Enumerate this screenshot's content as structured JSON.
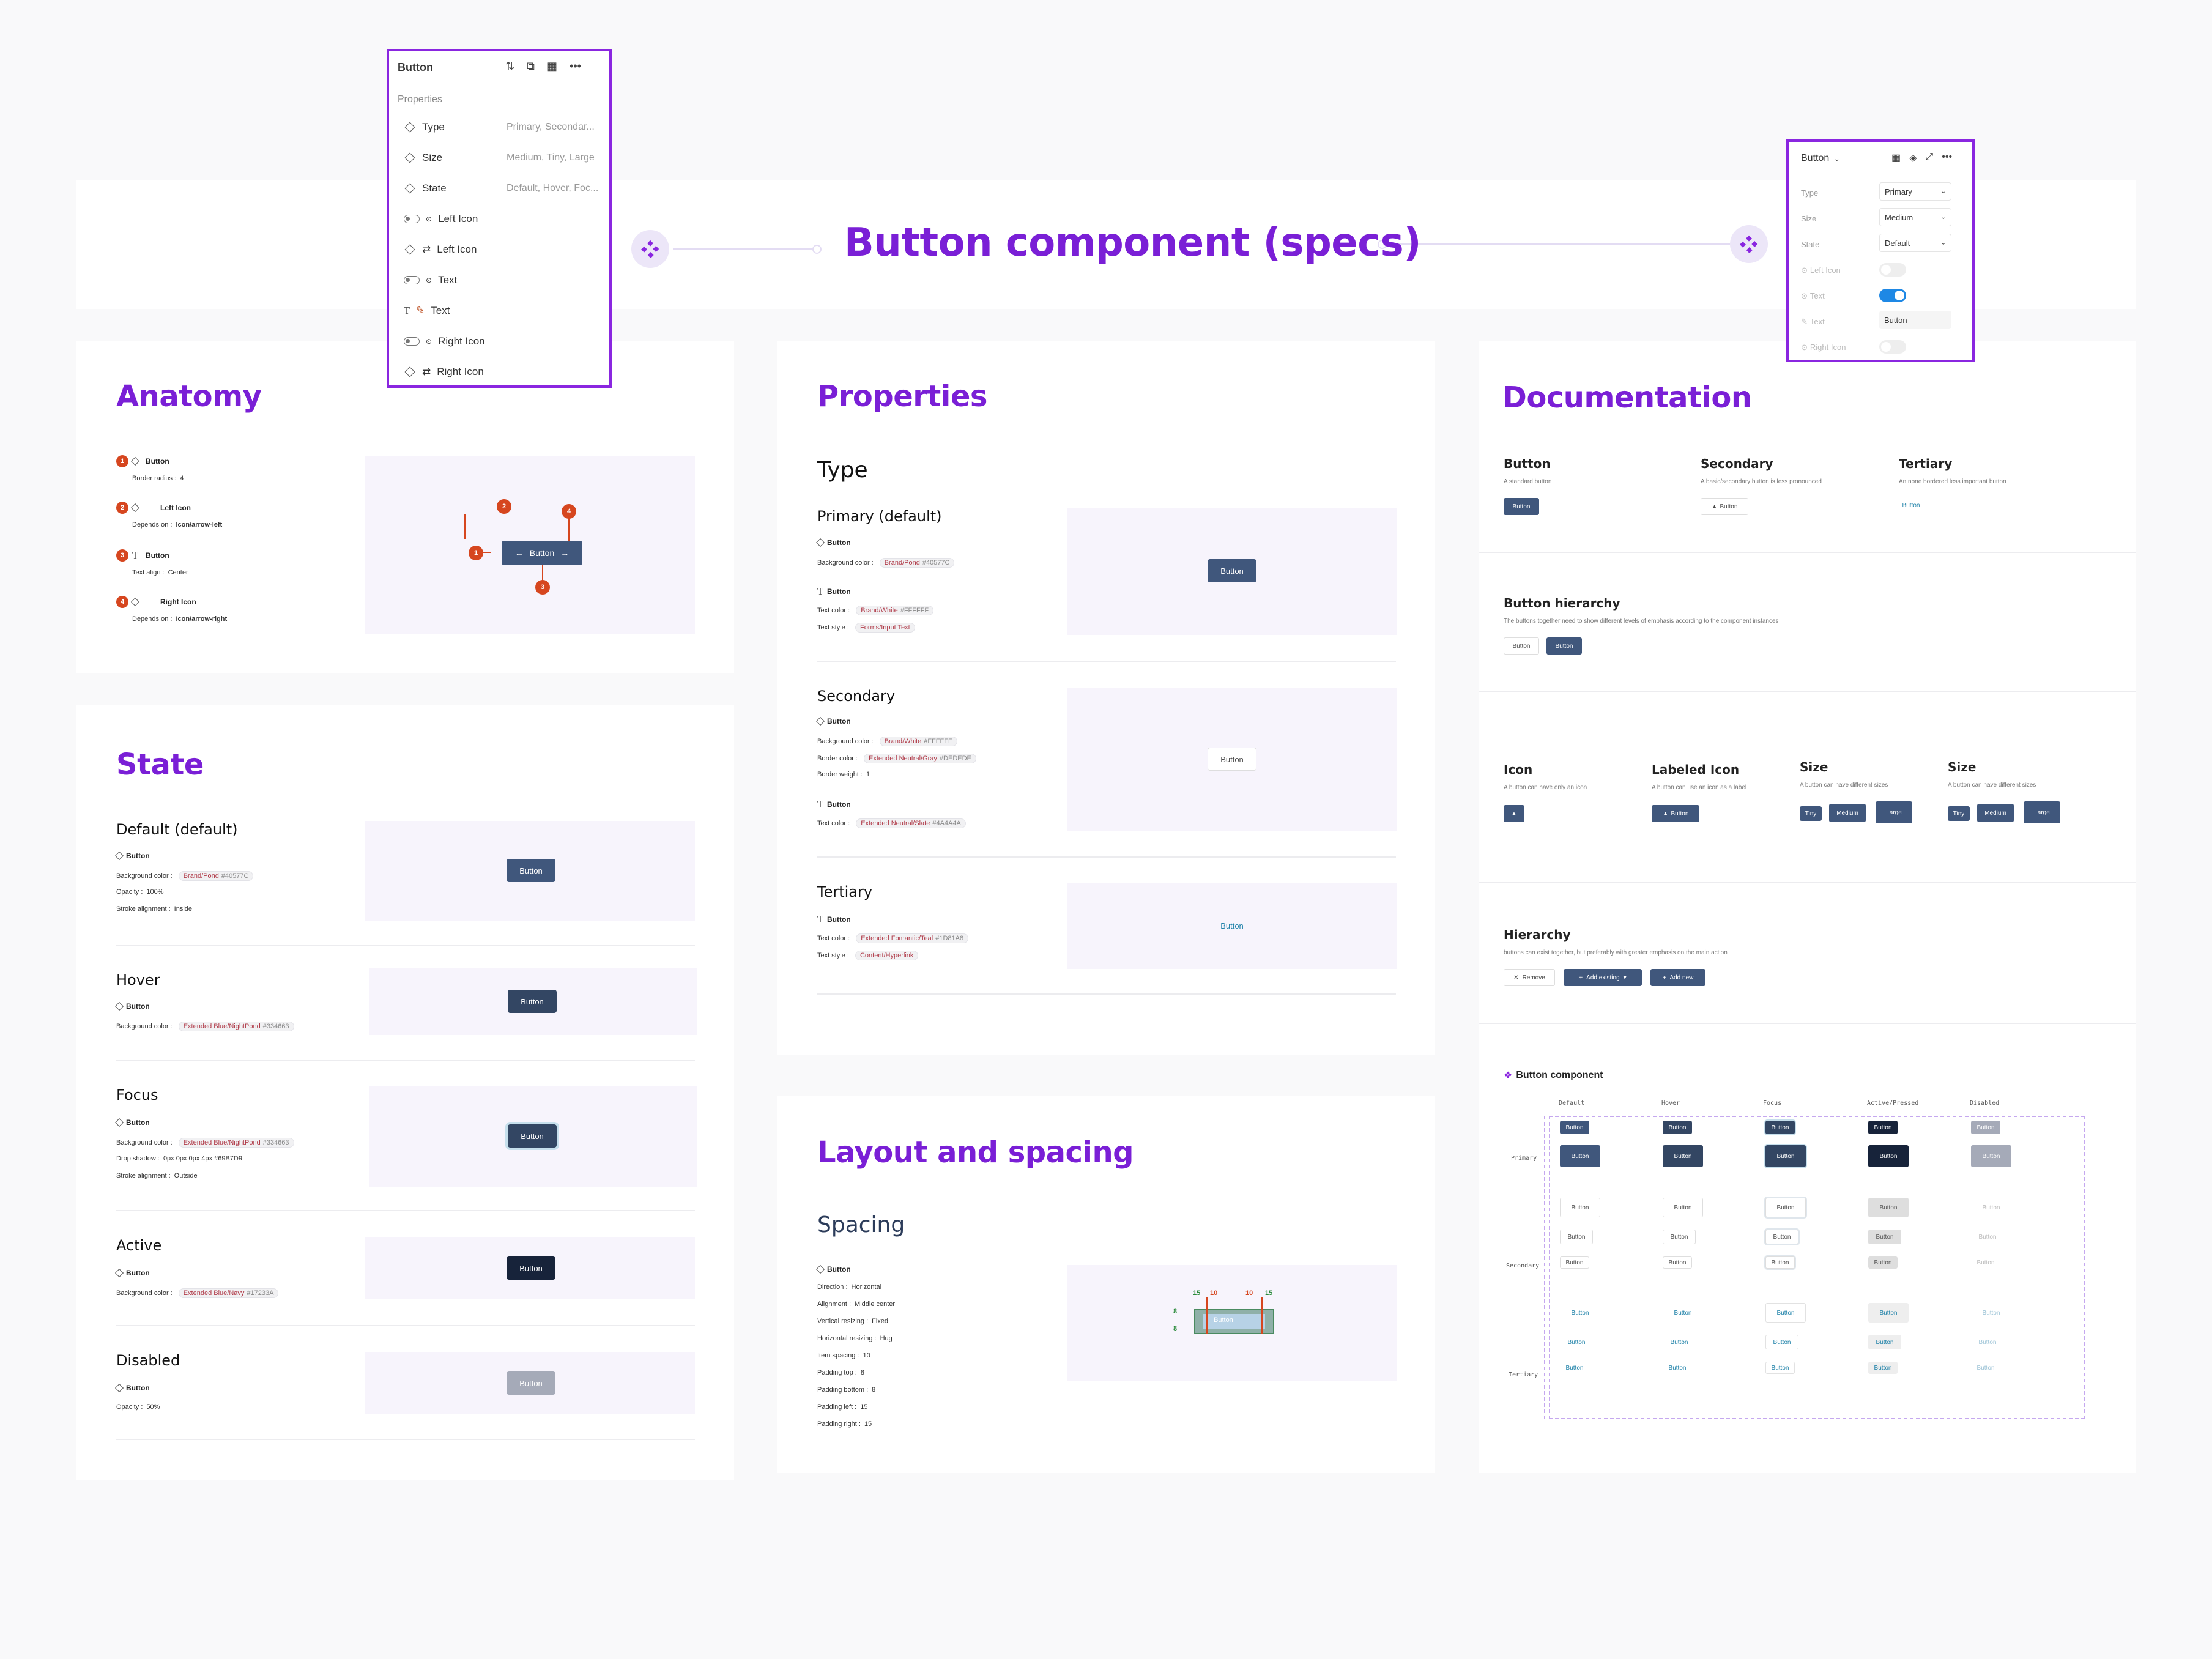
{
  "header": {
    "title": "Button component (specs)"
  },
  "left_panel": {
    "title": "Button",
    "section": "Properties",
    "rows": [
      {
        "label": "Type",
        "value": "Primary, Secondar..."
      },
      {
        "label": "Size",
        "value": "Medium, Tiny, Large"
      },
      {
        "label": "State",
        "value": "Default, Hover, Foc..."
      },
      {
        "label": "Left Icon",
        "value": ""
      },
      {
        "label": "Left Icon",
        "value": ""
      },
      {
        "label": "Text",
        "value": ""
      },
      {
        "label": "Text",
        "value": ""
      },
      {
        "label": "Right Icon",
        "value": ""
      },
      {
        "label": "Right Icon",
        "value": ""
      }
    ]
  },
  "right_panel": {
    "title": "Button",
    "rows": [
      {
        "label": "Type",
        "value": "Primary"
      },
      {
        "label": "Size",
        "value": "Medium"
      },
      {
        "label": "State",
        "value": "Default"
      },
      {
        "label": "Left Icon",
        "value": ""
      },
      {
        "label": "Text",
        "value": ""
      },
      {
        "label": "Text",
        "value": "Button"
      },
      {
        "label": "Right Icon",
        "value": ""
      }
    ]
  },
  "anatomy": {
    "title": "Anatomy",
    "items": [
      {
        "n": "1",
        "name": "Button",
        "key": "Border radius :",
        "val": "4"
      },
      {
        "n": "2",
        "name": "Left Icon",
        "key": "Depends on :",
        "val": "Icon/arrow-left"
      },
      {
        "n": "3",
        "name": "Button",
        "key": "Text align :",
        "val": "Center"
      },
      {
        "n": "4",
        "name": "Right Icon",
        "key": "Depends on :",
        "val": "Icon/arrow-right"
      }
    ],
    "button_label": "Button",
    "markers": [
      "1",
      "2",
      "3",
      "4"
    ]
  },
  "state": {
    "title": "State",
    "default": {
      "title": "Default (default)",
      "name": "Button",
      "bg_key": "Background color :",
      "bg_chip": "Brand/Pond",
      "bg_hex": "#40577C",
      "opacity": "Opacity :",
      "opacity_val": "100%",
      "stroke": "Stroke alignment :",
      "stroke_val": "Inside",
      "btn": "Button"
    },
    "hover": {
      "title": "Hover",
      "name": "Button",
      "bg_key": "Background color :",
      "bg_chip": "Extended Blue/NightPond",
      "bg_hex": "#334663",
      "btn": "Button"
    },
    "focus": {
      "title": "Focus",
      "name": "Button",
      "bg_key": "Background color :",
      "bg_chip": "Extended Blue/NightPond",
      "bg_hex": "#334663",
      "shadow": "Drop shadow :",
      "shadow_val": "0px 0px 0px 4px #69B7D9",
      "stroke": "Stroke alignment :",
      "stroke_val": "Outside",
      "btn": "Button"
    },
    "active": {
      "title": "Active",
      "name": "Button",
      "bg_key": "Background color :",
      "bg_chip": "Extended Blue/Navy",
      "bg_hex": "#17233A",
      "btn": "Button"
    },
    "disabled": {
      "title": "Disabled",
      "name": "Button",
      "opacity": "Opacity :",
      "opacity_val": "50%",
      "btn": "Button"
    }
  },
  "properties": {
    "title": "Properties",
    "type": "Type",
    "primary": {
      "title": "Primary (default)",
      "n1": "Button",
      "bg_key": "Background color :",
      "bg_chip": "Brand/Pond",
      "bg_hex": "#40577C",
      "n2": "Button",
      "tc_key": "Text color :",
      "tc_chip": "Brand/White",
      "tc_hex": "#FFFFFF",
      "ts_key": "Text style :",
      "ts_chip": "Forms/Input Text",
      "btn": "Button"
    },
    "secondary": {
      "title": "Secondary",
      "n1": "Button",
      "bg_key": "Background color :",
      "bg_chip": "Brand/White",
      "bg_hex": "#FFFFFF",
      "bc_key": "Border color :",
      "bc_chip": "Extended Neutral/Gray",
      "bc_hex": "#DEDEDE",
      "bw_key": "Border weight :",
      "bw_val": "1",
      "n2": "Button",
      "tc_key": "Text color :",
      "tc_chip": "Extended Neutral/Slate",
      "tc_hex": "#4A4A4A",
      "btn": "Button"
    },
    "tertiary": {
      "title": "Tertiary",
      "n1": "Button",
      "tc_key": "Text color :",
      "tc_chip": "Extended Fomantic/Teal",
      "tc_hex": "#1D81A8",
      "ts_key": "Text style :",
      "ts_chip": "Content/Hyperlink",
      "btn": "Button"
    }
  },
  "layout": {
    "title": "Layout and spacing",
    "spacing": "Spacing",
    "name": "Button",
    "lines": [
      {
        "k": "Direction :",
        "v": "Horizontal"
      },
      {
        "k": "Alignment :",
        "v": "Middle center"
      },
      {
        "k": "Vertical resizing :",
        "v": "Fixed"
      },
      {
        "k": "Horizontal resizing :",
        "v": "Hug"
      },
      {
        "k": "Item spacing :",
        "v": "10"
      },
      {
        "k": "Padding top :",
        "v": "8"
      },
      {
        "k": "Padding bottom :",
        "v": "8"
      },
      {
        "k": "Padding left :",
        "v": "15"
      },
      {
        "k": "Padding right :",
        "v": "15"
      }
    ],
    "measure_top": [
      "15",
      "10",
      "10",
      "15"
    ],
    "measure_left": [
      "8",
      "8"
    ],
    "btn": "Button"
  },
  "documentation": {
    "title": "Documentation",
    "row1": [
      {
        "h": "Button",
        "s": "A standard button",
        "btn": "Button"
      },
      {
        "h": "Secondary",
        "s": "A basic/secondary button is less pronounced",
        "btn": "Button"
      },
      {
        "h": "Tertiary",
        "s": "An none bordered less important button",
        "btn": "Button"
      }
    ],
    "hierarchy1": {
      "h": "Button hierarchy",
      "s": "The buttons together need to show different levels of emphasis according to the component instances",
      "b1": "Button",
      "b2": "Button"
    },
    "row3": [
      {
        "h": "Icon",
        "s": "A button can have only an icon"
      },
      {
        "h": "Labeled Icon",
        "s": "A button can use an icon as a label",
        "btn": "Button"
      },
      {
        "h": "Size",
        "s": "A button can have different sizes",
        "b": [
          "Tiny",
          "Medium",
          "Large"
        ]
      },
      {
        "h": "Size",
        "s": "A button can have different sizes",
        "b": [
          "Tiny",
          "Medium",
          "Large"
        ]
      }
    ],
    "hierarchy2": {
      "h": "Hierarchy",
      "s": "buttons can exist together, but preferably with greater emphasis on the main action",
      "b1": "Remove",
      "b2": "Add existing",
      "b3": "Add new"
    },
    "component": {
      "title": "Button component",
      "cols": [
        "Default",
        "Hover",
        "Focus",
        "Active/Pressed",
        "Disabled"
      ],
      "rows": [
        "Primary",
        "Secondary",
        "Tertiary"
      ],
      "btn": "Button"
    }
  },
  "colors": {
    "accent": "#7a1fd6",
    "primary": "#40577c",
    "hover": "#334663",
    "active": "#17233a",
    "teal": "#1d81a8"
  }
}
